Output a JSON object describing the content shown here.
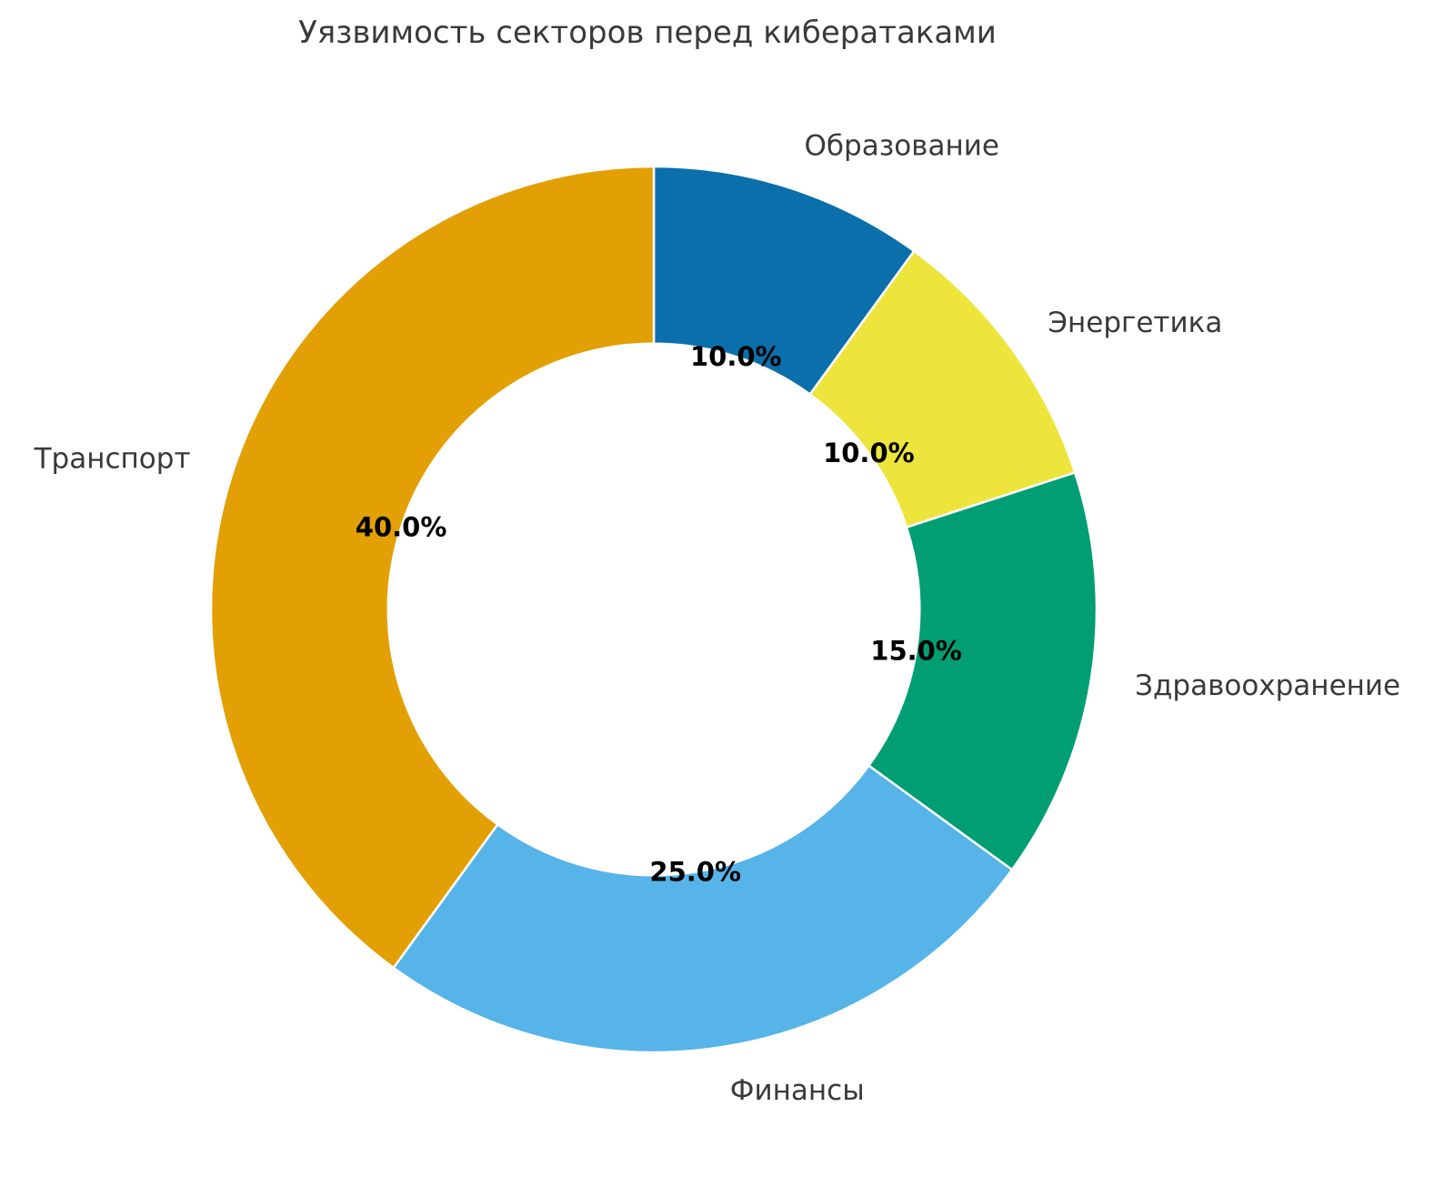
{
  "chart_data": {
    "type": "pie",
    "variant": "donut",
    "title": "Уязвимость секторов перед кибератаками",
    "categories": [
      "Образование",
      "Энергетика",
      "Здравоохранение",
      "Финансы",
      "Транспорт"
    ],
    "values": [
      10,
      10,
      15,
      25,
      40
    ],
    "pct_labels": [
      "10.0%",
      "10.0%",
      "15.0%",
      "25.0%",
      "40.0%"
    ],
    "colors": [
      "#0B6FAC",
      "#EDE53C",
      "#029E73",
      "#56B4E9",
      "#E2A004"
    ],
    "start_angle_deg": 90,
    "direction": "clockwise",
    "donut_hole_ratio": 0.6,
    "label_distance": 1.1,
    "pct_distance": 0.6,
    "legend": "none",
    "background_color": "#ffffff",
    "title_color": "#3a3a3a",
    "label_color": "#3a3a3a",
    "pct_color": "#000000",
    "slice_edge_color": "#ffffff"
  }
}
